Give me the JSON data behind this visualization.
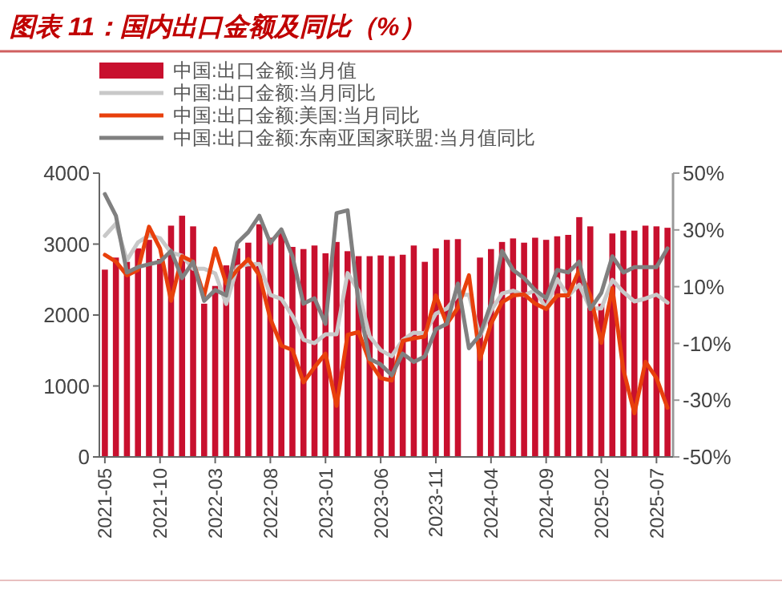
{
  "chart_data": {
    "type": "bar",
    "title": "图表 11：国内出口金额及同比（%）",
    "categories": [
      "2021-05",
      null,
      null,
      null,
      null,
      "2021-10",
      null,
      null,
      null,
      null,
      "2022-03",
      null,
      null,
      null,
      null,
      "2022-08",
      null,
      null,
      null,
      null,
      "2023-01",
      null,
      null,
      null,
      null,
      "2023-06",
      null,
      null,
      null,
      null,
      "2023-11",
      null,
      null,
      null,
      null,
      "2024-04",
      null,
      null,
      null,
      null,
      "2024-09",
      null,
      null,
      null,
      null,
      "2025-02",
      null,
      null,
      null,
      null,
      "2025-07",
      null
    ],
    "series": [
      {
        "name": "中国:出口金额:当月值",
        "color": "#c8102e",
        "values": [
          2640,
          2810,
          2750,
          2940,
          3060,
          2790,
          3260,
          3400,
          3250,
          2160,
          2410,
          2700,
          2940,
          3020,
          3280,
          3090,
          3170,
          2960,
          2930,
          2980,
          2870,
          3030,
          2900,
          2830,
          2830,
          2840,
          2830,
          2850,
          2980,
          2750,
          2940,
          3060,
          3070,
          null,
          2810,
          2930,
          3030,
          3080,
          3020,
          3090,
          3060,
          3110,
          3130,
          3380,
          3250,
          2160,
          3150,
          3190,
          3190,
          3260,
          3250,
          3230
        ]
      },
      {
        "name": "中国:出口金额:当月同比",
        "type": "line",
        "axis": "y2",
        "color": "#c8c8c8",
        "values": [
          27.9,
          32.2,
          19.3,
          25.6,
          28.1,
          27.1,
          22,
          20.9,
          16.3,
          16.3,
          14.7,
          3.9,
          16.9,
          17.9,
          18,
          7.1,
          5.7,
          -0.3,
          -8.7,
          -9.9,
          -6.8,
          -6.8,
          14.8,
          8.5,
          -7.5,
          -12.4,
          -14.5,
          -8.8,
          -6.2,
          -6.4,
          0.5,
          2.3,
          7.1,
          7.1,
          -7.5,
          1.5,
          7.6,
          8.6,
          7,
          8.7,
          2.4,
          12.7,
          6.7,
          10.7,
          2.3,
          2.3,
          12.4,
          8.1,
          4.8,
          5.8,
          7.2,
          4.4
        ]
      },
      {
        "name": "中国:出口金额:美国:当月同比",
        "type": "line",
        "axis": "y2",
        "color": "#e8400c",
        "values": [
          21.2,
          18.8,
          14,
          15.9,
          31.1,
          23.5,
          5,
          20.7,
          18.8,
          6.9,
          23.5,
          11.1,
          15.9,
          19.7,
          14,
          -1.3,
          -10.8,
          -12.3,
          -23.7,
          -18.4,
          -13.6,
          -32,
          -7,
          -6,
          -16.5,
          -22.2,
          -23.1,
          -9.1,
          -8.2,
          -7.6,
          6.9,
          -3.1,
          2.6,
          14,
          -15.5,
          -3.1,
          4.5,
          6.9,
          7.3,
          4,
          2.1,
          6.9,
          6.9,
          15.9,
          6.9,
          -9.8,
          9.5,
          -19.3,
          -34.6,
          -16.5,
          -22.2,
          -32.7
        ]
      },
      {
        "name": "中国:出口金额:东南亚国家联盟:当月值同比",
        "type": "line",
        "axis": "y2",
        "color": "#808080",
        "values": [
          42.6,
          35,
          15,
          16.9,
          17.9,
          18.8,
          22.6,
          13,
          18.8,
          5,
          8.8,
          6.9,
          25.4,
          29.2,
          35,
          25.4,
          30.2,
          20.7,
          4,
          5.9,
          -3.1,
          35.9,
          36.9,
          4,
          -15.5,
          -17.4,
          -21.2,
          -13.6,
          -16.5,
          -14.6,
          -5,
          -3.1,
          11.1,
          -11.7,
          -7,
          4,
          22.6,
          15.9,
          13,
          8.8,
          5.9,
          15.9,
          15,
          18.8,
          2.1,
          7.8,
          20.7,
          15,
          16.9,
          16.9,
          16.9,
          23.5
        ]
      }
    ],
    "ylim": [
      0,
      4000
    ],
    "yticks": [
      0,
      1000,
      2000,
      3000,
      4000
    ],
    "y2lim": [
      -50,
      50
    ],
    "y2ticks": [
      {
        "value": -50,
        "label": "-50%"
      },
      {
        "value": -30,
        "label": "-30%"
      },
      {
        "value": -10,
        "label": "-10%"
      },
      {
        "value": 10,
        "label": "10%"
      },
      {
        "value": 30,
        "label": "30%"
      },
      {
        "value": 50,
        "label": "50%"
      }
    ],
    "legend": "top left",
    "marker": "none",
    "line_style": "solid"
  }
}
